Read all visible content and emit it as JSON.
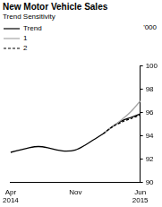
{
  "chart_data": {
    "type": "line",
    "title": "New Motor Vehicle Sales",
    "subtitle": "Trend Sensitivity",
    "ylabel": "'000",
    "categories": [
      "Apr 2014",
      null,
      null,
      null,
      null,
      null,
      null,
      "Nov",
      null,
      null,
      null,
      null,
      null,
      null,
      "Jun 2015"
    ],
    "series": [
      {
        "name": "Trend",
        "color": "#000000",
        "line_style": "solid",
        "values": [
          92.6,
          92.8,
          93.0,
          93.1,
          93.0,
          92.8,
          92.7,
          92.8,
          93.2,
          93.7,
          94.2,
          94.8,
          95.3,
          95.6,
          95.9
        ]
      },
      {
        "name": "1",
        "color": "#a6a6a6",
        "line_style": "solid",
        "values": [
          null,
          null,
          null,
          null,
          null,
          null,
          null,
          null,
          null,
          null,
          94.2,
          94.8,
          95.4,
          96.1,
          97.0
        ]
      },
      {
        "name": "2",
        "color": "#000000",
        "line_style": "dashed",
        "values": [
          null,
          null,
          null,
          null,
          null,
          null,
          null,
          null,
          null,
          null,
          94.2,
          94.8,
          95.2,
          95.5,
          95.8
        ]
      }
    ],
    "ylim": [
      90,
      100
    ],
    "yticks": [
      90,
      92,
      94,
      96,
      98,
      100
    ],
    "grid": false,
    "legend": "top-left"
  }
}
